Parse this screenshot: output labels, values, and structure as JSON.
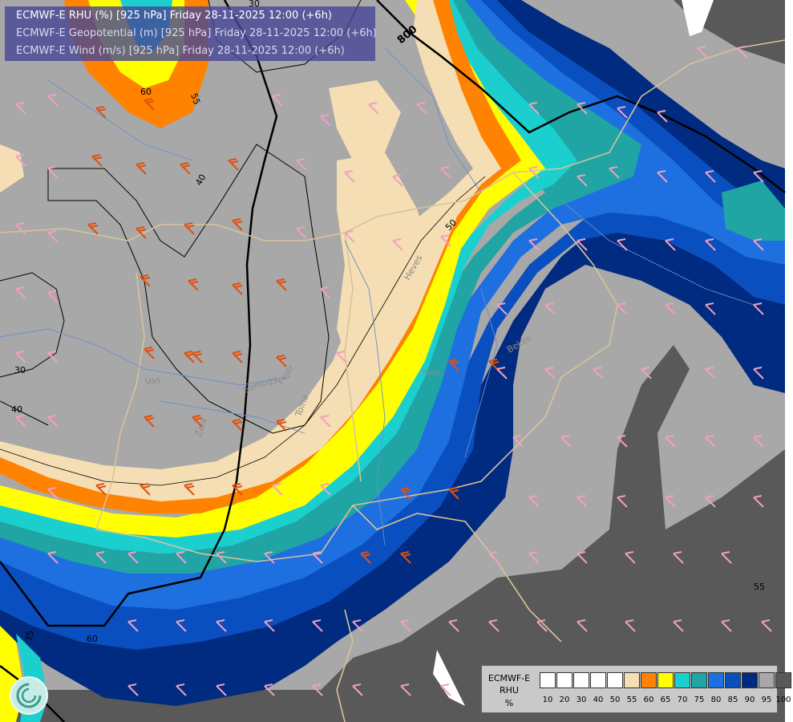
{
  "header": {
    "line1": "ECMWF-E RHU (%) [925 hPa] Friday 28-11-2025 12:00 (+6h)",
    "line2": "ECMWF-E Geopotential (m) [925 hPa] Friday 28-11-2025 12:00 (+6h)",
    "line3": "ECMWF-E Wind (m/s) [925 hPa] Friday 28-11-2025 12:00 (+6h)"
  },
  "legend": {
    "title_line1": "ECMWF-E",
    "title_line2": "RHU",
    "unit": "%",
    "ticks": [
      "10",
      "20",
      "30",
      "40",
      "50",
      "55",
      "60",
      "65",
      "70",
      "75",
      "80",
      "85",
      "90",
      "95",
      "100"
    ],
    "colors": [
      "#ffffff",
      "#ffffff",
      "#ffffff",
      "#ffffff",
      "#ffffff",
      "#f5deb3",
      "#ff8200",
      "#ffff00",
      "#1ccfcf",
      "#20a4a4",
      "#1e6fe0",
      "#0a4fbf",
      "#002b80",
      "#a8a8a8",
      "#595959"
    ]
  },
  "map": {
    "contour_labels": [
      "800",
      "30",
      "40",
      "30",
      "40",
      "50",
      "55",
      "60",
      "75",
      "60",
      "55"
    ],
    "place_labels": [
      "Vas",
      "Zala",
      "Somogy",
      "Fejér",
      "Tolna",
      "Heves",
      "Pest",
      "Bekes"
    ],
    "colors": {
      "band_55": "#f5deb3",
      "band_60": "#ff8200",
      "band_65": "#ffff00",
      "band_70": "#1ccfcf",
      "band_75": "#20a4a4",
      "band_80": "#1e6fe0",
      "band_85": "#0a4fbf",
      "band_90": "#002b80",
      "band_95": "#a8a8a8",
      "band_100": "#595959",
      "border": "#d8c39a",
      "river": "#6a8fc8",
      "wind_strong": "#e05010",
      "wind_weak": "#f0a0c0"
    }
  }
}
